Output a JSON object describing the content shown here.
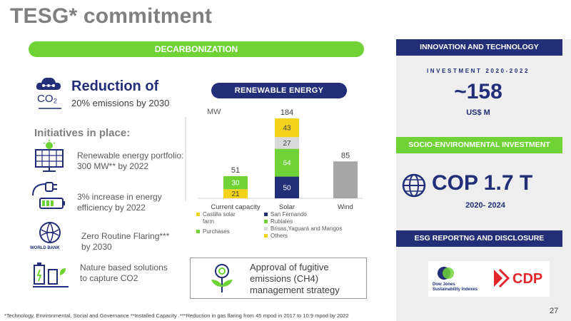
{
  "title": "TESG* commitment",
  "decarbonization": {
    "header": "DECARBONIZATION",
    "reduction_title": "Reduction of",
    "reduction_sub": "20% emissions by 2030",
    "co2_label": "CO₂",
    "initiatives_title": "Initiatives in place:",
    "initiatives": [
      {
        "text_l1": "Renewable energy portfolio:",
        "text_l2": "300 MW** by 2022",
        "icon": "solar-panel-icon"
      },
      {
        "text_l1": "3% increase in energy",
        "text_l2": "efficiency by 2022",
        "icon": "plug-battery-icon"
      },
      {
        "text_l1": "Zero Routine Flaring***",
        "text_l2": "by 2030",
        "icon": "world-bank-logo"
      },
      {
        "text_l1": "Nature based solutions",
        "text_l2": "to capture CO2",
        "icon": "battery-plant-icon"
      }
    ],
    "world_bank_label": "WORLD BANK",
    "approval_l1": "Approval of fugitive",
    "approval_l2": "emissions (CH4)",
    "approval_l3": "management strategy"
  },
  "renewable": {
    "pill": "RENEWABLE ENERGY",
    "unit": "MW"
  },
  "chart_data": {
    "type": "bar",
    "stacked": true,
    "categories": [
      "Current capacity",
      "Solar",
      "Wind"
    ],
    "totals": [
      51,
      184,
      85
    ],
    "series": [
      {
        "name": "Castilla solar farm",
        "color": "#f2d21b",
        "values": [
          21,
          0,
          0
        ]
      },
      {
        "name": "Purchases",
        "color": "#6fd336",
        "values": [
          30,
          0,
          0
        ]
      },
      {
        "name": "San Fernando",
        "color": "#222e78",
        "values": [
          0,
          50,
          0
        ]
      },
      {
        "name": "Rubiales",
        "color": "#6fd336",
        "values": [
          0,
          64,
          0
        ]
      },
      {
        "name": "Brisas,Yaguará and Mangos",
        "color": "#d9d9d9",
        "values": [
          0,
          27,
          0
        ]
      },
      {
        "name": "Others",
        "color": "#f2d21b",
        "values": [
          0,
          43,
          0
        ]
      },
      {
        "name": "",
        "color": "#a6a6a6",
        "values": [
          0,
          0,
          85
        ]
      }
    ],
    "legend": {
      "left": [
        {
          "label": "Castilla solar",
          "label2": "farm",
          "color": "#f2d21b"
        },
        {
          "label": "Purchases",
          "color": "#6fd336"
        }
      ],
      "right": [
        {
          "label": "San Fernando",
          "color": "#222e78"
        },
        {
          "label": "Rubiales",
          "color": "#6fd336"
        },
        {
          "label": "Brisas,Yaguará and Mangos",
          "color": "#d9d9d9"
        },
        {
          "label": "Others",
          "color": "#f2d21b"
        }
      ]
    }
  },
  "innovation": {
    "header": "INNOVATION AND TECHNOLOGY",
    "invest_label": "INVESTMENT 2020-2022",
    "invest_value": "~158",
    "invest_unit": "US$ M"
  },
  "socio": {
    "header": "SOCIO-ENVIRONMENTAL INVESTMENT",
    "value": "COP 1.7 T",
    "years": "2020- 2024"
  },
  "esg": {
    "header": "ESG REPORTNG AND DISCLOSURE",
    "djsi_l1": "Dow Jones",
    "djsi_l2": "Sustainability Indexes",
    "cdp": "CDP"
  },
  "footnote": "*Technology, Environmental, Social and Governance  **Installed Capacity .***Reduction in gas flaring from 45 mpod in 2017 to 10.9 mpod by 2022",
  "page_number": "27",
  "colors": {
    "navy": "#222e78",
    "green": "#6fd336",
    "yellow": "#f2d21b",
    "gray": "#a6a6a6"
  }
}
